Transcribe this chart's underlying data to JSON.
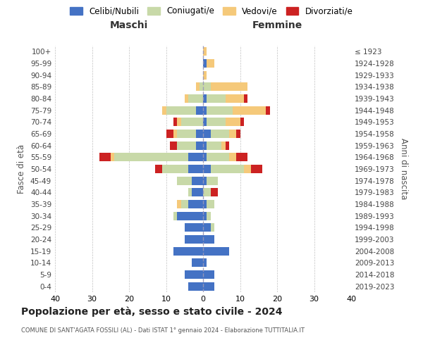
{
  "age_groups": [
    "0-4",
    "5-9",
    "10-14",
    "15-19",
    "20-24",
    "25-29",
    "30-34",
    "35-39",
    "40-44",
    "45-49",
    "50-54",
    "55-59",
    "60-64",
    "65-69",
    "70-74",
    "75-79",
    "80-84",
    "85-89",
    "90-94",
    "95-99",
    "100+"
  ],
  "birth_years": [
    "2019-2023",
    "2014-2018",
    "2009-2013",
    "2004-2008",
    "1999-2003",
    "1994-1998",
    "1989-1993",
    "1984-1988",
    "1979-1983",
    "1974-1978",
    "1969-1973",
    "1964-1968",
    "1959-1963",
    "1954-1958",
    "1949-1953",
    "1944-1948",
    "1939-1943",
    "1934-1938",
    "1929-1933",
    "1924-1928",
    "≤ 1923"
  ],
  "male": {
    "celibi": [
      4,
      5,
      3,
      8,
      5,
      5,
      7,
      4,
      3,
      3,
      4,
      4,
      2,
      2,
      0,
      2,
      0,
      0,
      0,
      0,
      0
    ],
    "coniugati": [
      0,
      0,
      0,
      0,
      0,
      0,
      1,
      2,
      1,
      4,
      7,
      20,
      5,
      5,
      6,
      8,
      4,
      1,
      0,
      0,
      0
    ],
    "vedovi": [
      0,
      0,
      0,
      0,
      0,
      0,
      0,
      1,
      0,
      0,
      0,
      1,
      0,
      1,
      1,
      1,
      1,
      1,
      0,
      0,
      0
    ],
    "divorziati": [
      0,
      0,
      0,
      0,
      0,
      0,
      0,
      0,
      0,
      0,
      2,
      3,
      2,
      2,
      1,
      0,
      0,
      0,
      0,
      0,
      0
    ]
  },
  "female": {
    "nubili": [
      3,
      3,
      1,
      7,
      3,
      2,
      1,
      1,
      0,
      1,
      2,
      1,
      1,
      2,
      1,
      1,
      1,
      0,
      0,
      1,
      0
    ],
    "coniugate": [
      0,
      0,
      0,
      0,
      0,
      1,
      1,
      2,
      2,
      3,
      9,
      6,
      4,
      5,
      5,
      7,
      5,
      2,
      0,
      0,
      0
    ],
    "vedove": [
      0,
      0,
      0,
      0,
      0,
      0,
      0,
      0,
      0,
      0,
      2,
      2,
      1,
      2,
      4,
      9,
      5,
      10,
      1,
      2,
      1
    ],
    "divorziate": [
      0,
      0,
      0,
      0,
      0,
      0,
      0,
      0,
      2,
      0,
      3,
      3,
      1,
      1,
      1,
      1,
      1,
      0,
      0,
      0,
      0
    ]
  },
  "colors": {
    "celibi_nubili": "#4472c4",
    "coniugati": "#c8d9a8",
    "vedovi": "#f5c97a",
    "divorziati": "#cc2222"
  },
  "title": "Popolazione per età, sesso e stato civile - 2024",
  "subtitle": "COMUNE DI SANT'AGATA FOSSILI (AL) - Dati ISTAT 1° gennaio 2024 - Elaborazione TUTTITALIA.IT",
  "xlabel_maschi": "Maschi",
  "xlabel_femmine": "Femmine",
  "ylabel_left": "Fasce di età",
  "ylabel_right": "Anni di nascita",
  "xlim": 40,
  "legend_labels": [
    "Celibi/Nubili",
    "Coniugati/e",
    "Vedovi/e",
    "Divorziati/e"
  ],
  "background_color": "#ffffff"
}
